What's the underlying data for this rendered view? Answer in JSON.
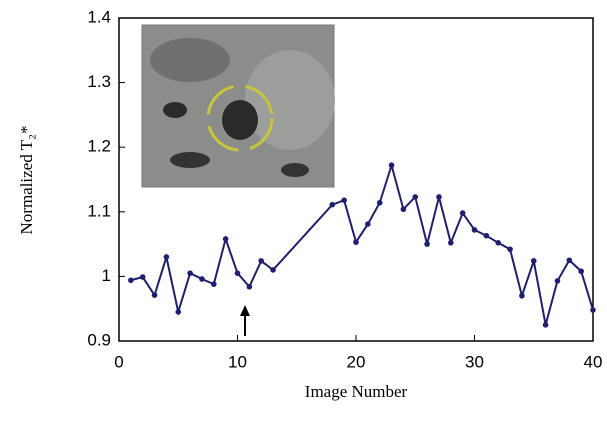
{
  "chart_data": {
    "type": "line",
    "x_label": "Image Number",
    "y_label": "Normalized T₂*",
    "x": [
      1,
      2,
      3,
      4,
      5,
      6,
      7,
      8,
      9,
      10,
      11,
      12,
      13,
      18,
      19,
      20,
      21,
      22,
      23,
      24,
      25,
      26,
      27,
      28,
      29,
      30,
      31,
      32,
      33,
      34,
      35,
      36,
      37,
      38,
      39,
      40
    ],
    "series": [
      {
        "color": "#1f1f6e",
        "values": [
          0.994,
          0.999,
          0.971,
          1.03,
          0.945,
          1.005,
          0.996,
          0.988,
          1.058,
          1.005,
          0.984,
          1.024,
          1.01,
          1.111,
          1.118,
          1.053,
          1.081,
          1.114,
          1.172,
          1.104,
          1.123,
          1.05,
          1.123,
          1.052,
          1.098,
          1.072,
          1.063,
          1.052,
          1.042,
          0.97,
          1.024,
          0.925,
          0.993,
          1.025,
          1.008,
          0.948
        ]
      }
    ],
    "xlim": [
      0,
      40
    ],
    "xticks": [
      0,
      10,
      20,
      30,
      40
    ],
    "ylim": [
      0.9,
      1.4
    ],
    "yticks": [
      0.9,
      1,
      1.1,
      1.2,
      1.3,
      1.4
    ]
  }
}
